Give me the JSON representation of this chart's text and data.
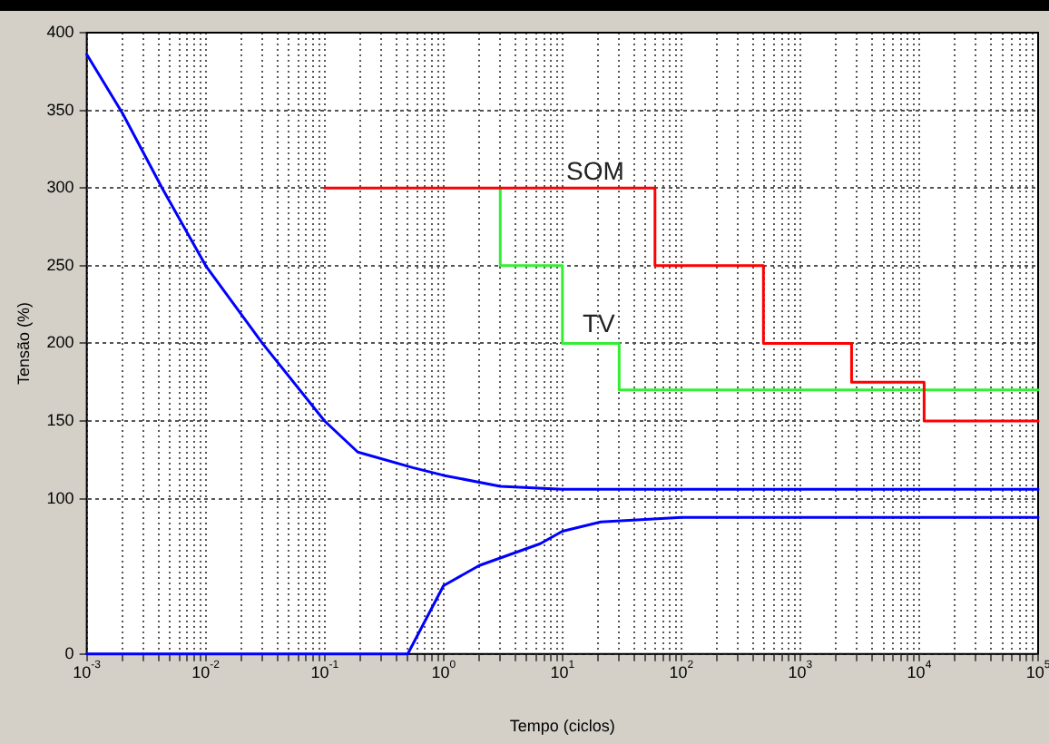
{
  "chart_data": {
    "type": "line",
    "xlabel": "Tempo (ciclos)",
    "ylabel": "Tensão (%)",
    "log": "x",
    "grid": true,
    "legend": false,
    "marker": "none",
    "line_style": "solid",
    "xlim": [
      0.001,
      100000
    ],
    "ylim": [
      0,
      400
    ],
    "xticks": [
      {
        "value": 0.001,
        "label": "10$^{-3}$"
      },
      {
        "value": 0.002,
        "label": null
      },
      {
        "value": 0.003,
        "label": null
      },
      {
        "value": 0.004,
        "label": null
      },
      {
        "value": 0.005,
        "label": null
      },
      {
        "value": 0.006,
        "label": null
      },
      {
        "value": 0.007,
        "label": null
      },
      {
        "value": 0.008,
        "label": null
      },
      {
        "value": 0.009,
        "label": null
      },
      {
        "value": 0.01,
        "label": "10$^{-2}$"
      },
      {
        "value": 0.02,
        "label": null
      },
      {
        "value": 0.03,
        "label": null
      },
      {
        "value": 0.04,
        "label": null
      },
      {
        "value": 0.05,
        "label": null
      },
      {
        "value": 0.06,
        "label": null
      },
      {
        "value": 0.07,
        "label": null
      },
      {
        "value": 0.08,
        "label": null
      },
      {
        "value": 0.09,
        "label": null
      },
      {
        "value": 0.1,
        "label": "10$^{-1}$"
      },
      {
        "value": 0.2,
        "label": null
      },
      {
        "value": 0.3,
        "label": null
      },
      {
        "value": 0.4,
        "label": null
      },
      {
        "value": 0.5,
        "label": null
      },
      {
        "value": 0.6,
        "label": null
      },
      {
        "value": 0.7,
        "label": null
      },
      {
        "value": 0.8,
        "label": null
      },
      {
        "value": 0.9,
        "label": null
      },
      {
        "value": 1,
        "label": "10$^{0}$"
      },
      {
        "value": 2,
        "label": null
      },
      {
        "value": 3,
        "label": null
      },
      {
        "value": 4,
        "label": null
      },
      {
        "value": 5,
        "label": null
      },
      {
        "value": 6,
        "label": null
      },
      {
        "value": 7,
        "label": null
      },
      {
        "value": 8,
        "label": null
      },
      {
        "value": 9,
        "label": null
      },
      {
        "value": 10,
        "label": "10$^{1}$"
      },
      {
        "value": 20,
        "label": null
      },
      {
        "value": 30,
        "label": null
      },
      {
        "value": 40,
        "label": null
      },
      {
        "value": 50,
        "label": null
      },
      {
        "value": 60,
        "label": null
      },
      {
        "value": 70,
        "label": null
      },
      {
        "value": 80,
        "label": null
      },
      {
        "value": 90,
        "label": null
      },
      {
        "value": 100,
        "label": "10$^{2}$"
      },
      {
        "value": 200,
        "label": null
      },
      {
        "value": 300,
        "label": null
      },
      {
        "value": 400,
        "label": null
      },
      {
        "value": 500,
        "label": null
      },
      {
        "value": 600,
        "label": null
      },
      {
        "value": 700,
        "label": null
      },
      {
        "value": 800,
        "label": null
      },
      {
        "value": 900,
        "label": null
      },
      {
        "value": 1000,
        "label": "10$^{3}$"
      },
      {
        "value": 2000,
        "label": null
      },
      {
        "value": 3000,
        "label": null
      },
      {
        "value": 4000,
        "label": null
      },
      {
        "value": 5000,
        "label": null
      },
      {
        "value": 6000,
        "label": null
      },
      {
        "value": 7000,
        "label": null
      },
      {
        "value": 8000,
        "label": null
      },
      {
        "value": 9000,
        "label": null
      },
      {
        "value": 10000,
        "label": "10$^{4}$"
      },
      {
        "value": 20000,
        "label": null
      },
      {
        "value": 30000,
        "label": null
      },
      {
        "value": 40000,
        "label": null
      },
      {
        "value": 50000,
        "label": null
      },
      {
        "value": 60000,
        "label": null
      },
      {
        "value": 70000,
        "label": null
      },
      {
        "value": 80000,
        "label": null
      },
      {
        "value": 90000,
        "label": null
      },
      {
        "value": 100000,
        "label": "10$^{5}$"
      }
    ],
    "yticks": [
      0,
      100,
      150,
      200,
      250,
      300,
      350,
      400
    ],
    "series": [
      {
        "color": "#0000ff",
        "x": [
          0.001,
          0.002,
          0.0043,
          0.01,
          0.03,
          0.1,
          0.19,
          0.55,
          1,
          3,
          10,
          100,
          100000
        ],
        "values": [
          386,
          348,
          300,
          250,
          200,
          150,
          130,
          120,
          115,
          108,
          106,
          106,
          106
        ]
      },
      {
        "color": "#0000ff",
        "x": [
          0.001,
          0.5,
          1,
          2,
          6.5,
          10,
          21,
          100,
          100000
        ],
        "values": [
          0,
          0,
          44,
          57,
          71,
          79,
          85,
          88,
          88
        ]
      },
      {
        "type": "step",
        "color": "#ff0000",
        "x": [
          0.1,
          60,
          490,
          2700,
          11000,
          100000
        ],
        "values": [
          300,
          250,
          200,
          175,
          150,
          150
        ]
      },
      {
        "type": "step",
        "color": "#33ee33",
        "x": [
          3,
          3,
          10,
          30,
          100000
        ],
        "values": [
          300,
          250,
          200,
          170,
          170
        ]
      }
    ],
    "annotations": [
      "SOM",
      "TV"
    ]
  }
}
